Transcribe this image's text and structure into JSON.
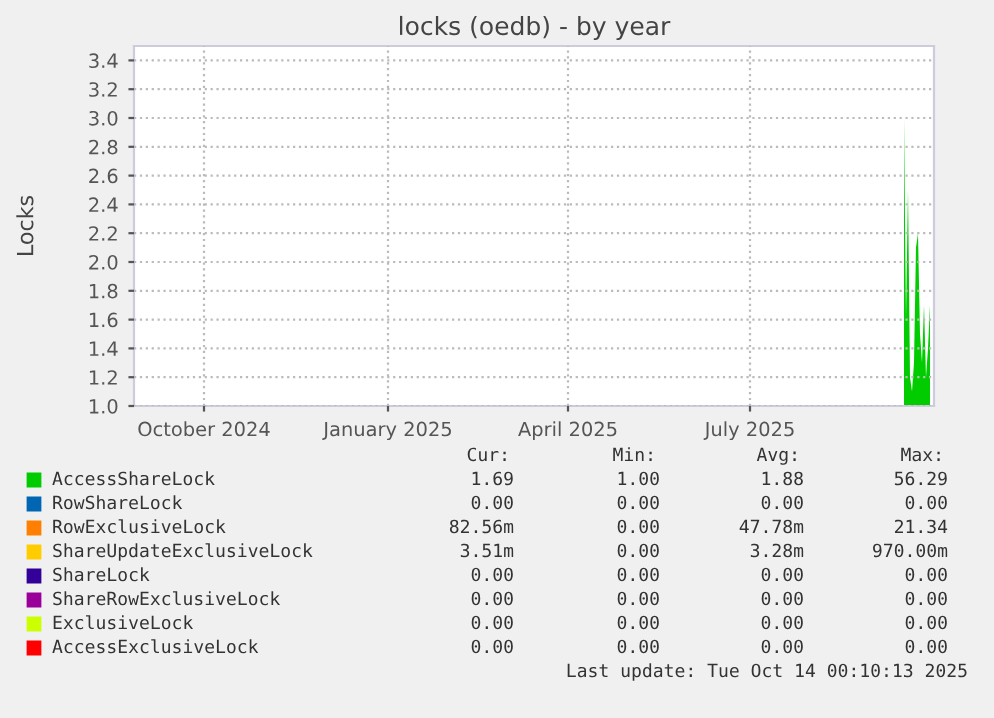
{
  "chart_data": {
    "type": "area",
    "title": "locks (oedb) - by year",
    "ylabel": "Locks",
    "grid": true,
    "legend": "bottom",
    "x": [
      "2025-10-01",
      "2025-10-02",
      "2025-10-03",
      "2025-10-04",
      "2025-10-05",
      "2025-10-06",
      "2025-10-07",
      "2025-10-08",
      "2025-10-09",
      "2025-10-10",
      "2025-10-11",
      "2025-10-12",
      "2025-10-13",
      "2025-10-14"
    ],
    "series": [
      {
        "name": "AccessShareLock",
        "color": "#00cc00",
        "values": [
          3.0,
          1.6,
          2.5,
          1.2,
          1.1,
          1.3,
          2.1,
          2.2,
          1.5,
          1.3,
          1.7,
          1.2,
          1.4,
          1.7
        ]
      },
      {
        "name": "RowShareLock",
        "color": "#0066b3",
        "values": [
          null,
          null,
          null,
          null,
          null,
          null,
          null,
          null,
          null,
          null,
          null,
          null,
          null,
          null
        ]
      },
      {
        "name": "RowExclusiveLock",
        "color": "#ff8000",
        "values": [
          null,
          null,
          null,
          null,
          null,
          null,
          null,
          null,
          null,
          null,
          null,
          null,
          null,
          null
        ]
      },
      {
        "name": "ShareUpdateExclusiveLock",
        "color": "#ffcc00",
        "values": [
          null,
          null,
          null,
          null,
          null,
          null,
          null,
          null,
          null,
          null,
          null,
          null,
          null,
          null
        ]
      },
      {
        "name": "ShareLock",
        "color": "#330099",
        "values": [
          null,
          null,
          null,
          null,
          null,
          null,
          null,
          null,
          null,
          null,
          null,
          null,
          null,
          null
        ]
      },
      {
        "name": "ShareRowExclusiveLock",
        "color": "#990099",
        "values": [
          null,
          null,
          null,
          null,
          null,
          null,
          null,
          null,
          null,
          null,
          null,
          null,
          null,
          null
        ]
      },
      {
        "name": "ExclusiveLock",
        "color": "#ccff00",
        "values": [
          null,
          null,
          null,
          null,
          null,
          null,
          null,
          null,
          null,
          null,
          null,
          null,
          null,
          null
        ]
      },
      {
        "name": "AccessExclusiveLock",
        "color": "#ff0000",
        "values": [
          null,
          null,
          null,
          null,
          null,
          null,
          null,
          null,
          null,
          null,
          null,
          null,
          null,
          null
        ]
      }
    ],
    "xlim": [
      "2024-09-11",
      "2025-10-16"
    ],
    "xticks": [
      {
        "value": "2024-10-16",
        "label": "October 2024"
      },
      {
        "value": "2025-01-16",
        "label": "January 2025"
      },
      {
        "value": "2025-04-16",
        "label": "April 2025"
      },
      {
        "value": "2025-07-16",
        "label": "July 2025"
      }
    ],
    "ylim": [
      1.0,
      3.5
    ],
    "yticks": [
      {
        "value": 1,
        "label": "1.0"
      },
      1.2,
      1.4,
      1.6,
      1.8,
      {
        "value": 2,
        "label": "2.0"
      },
      2.2,
      2.4,
      2.6,
      2.8,
      {
        "value": 3,
        "label": "3.0"
      },
      3.2,
      3.4
    ],
    "annotations": [
      "Cur:",
      "Min:",
      "Avg:",
      "Max:",
      "1.69",
      "1.00",
      "1.88",
      "56.29",
      "0.00",
      "0.00",
      "0.00",
      "0.00",
      "82.56m",
      "0.00",
      "47.78m",
      "21.34",
      "3.51m",
      "0.00",
      "3.28m",
      "970.00m",
      "0.00",
      "0.00",
      "0.00",
      "0.00",
      "0.00",
      "0.00",
      "0.00",
      "0.00",
      "0.00",
      "0.00",
      "0.00",
      "0.00",
      "0.00",
      "0.00",
      "0.00",
      "0.00",
      "Last update: Tue Oct 14 00:10:13 2025"
    ]
  }
}
